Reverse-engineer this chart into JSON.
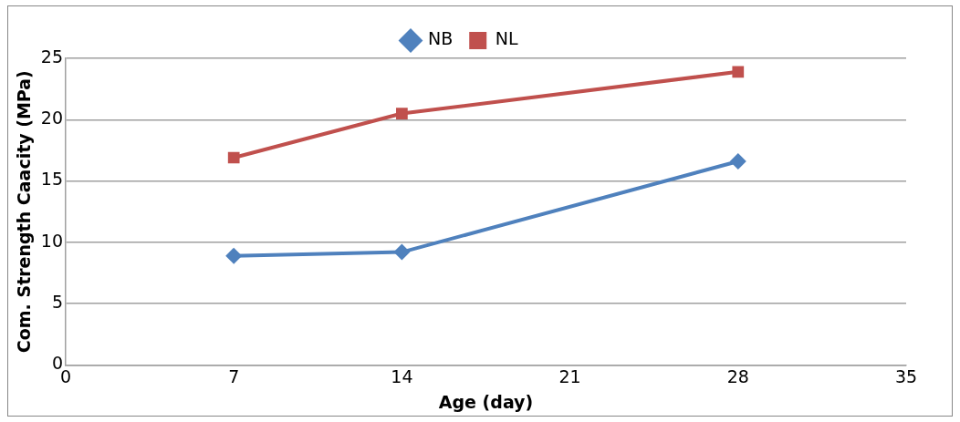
{
  "chart_data": {
    "type": "line",
    "xlabel": "Age (day)",
    "ylabel": "Com. Strength Caacity (MPa)",
    "x": [
      7,
      14,
      28
    ],
    "series": [
      {
        "name": "NB",
        "color": "#4f81bd",
        "marker": "diamond",
        "values": [
          8.9,
          9.2,
          16.6
        ]
      },
      {
        "name": "NL",
        "color": "#c0504d",
        "marker": "square",
        "values": [
          16.9,
          20.5,
          23.9
        ]
      }
    ],
    "xlim": [
      0,
      35
    ],
    "xticks": [
      0,
      7,
      14,
      21,
      28,
      35
    ],
    "ylim": [
      0,
      25
    ],
    "yticks": [
      0,
      5,
      10,
      15,
      20,
      25
    ],
    "grid": "y",
    "legend": "top",
    "line_style": "solid"
  }
}
